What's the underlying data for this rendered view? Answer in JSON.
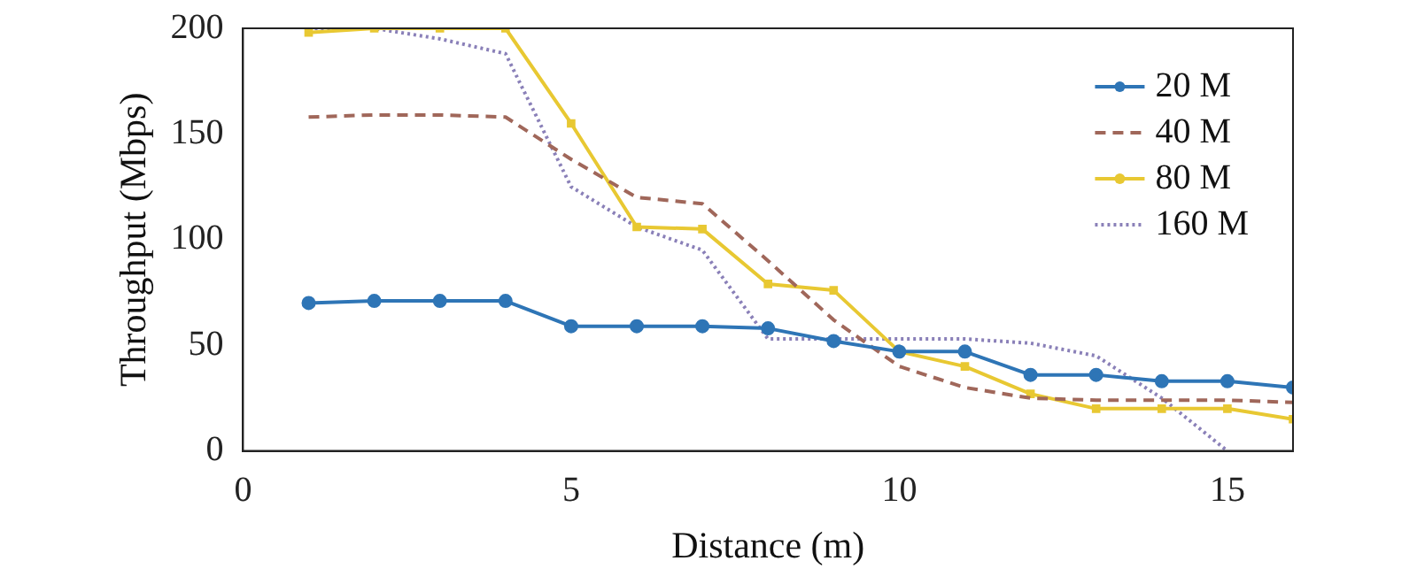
{
  "chart_data": {
    "type": "line",
    "xlabel": "Distance (m)",
    "ylabel": "Throughput (Mbps)",
    "x": [
      1,
      2,
      3,
      4,
      5,
      6,
      7,
      8,
      9,
      10,
      11,
      12,
      13,
      14,
      15,
      16
    ],
    "series": [
      {
        "name": "20 M",
        "color": "#2e75b6",
        "marker": "circle",
        "line_style": "solid",
        "values": [
          70,
          71,
          71,
          71,
          59,
          59,
          59,
          58,
          52,
          47,
          47,
          36,
          36,
          33,
          33,
          30
        ]
      },
      {
        "name": "40 M",
        "color": "#a0675a",
        "marker": "none",
        "line_style": "dashed",
        "values": [
          158,
          159,
          159,
          158,
          138,
          120,
          117,
          90,
          62,
          40,
          30,
          25,
          24,
          24,
          24,
          23
        ]
      },
      {
        "name": "80 M",
        "color": "#e8c832",
        "marker": "square",
        "line_style": "solid",
        "values": [
          198,
          200,
          200,
          200,
          155,
          106,
          105,
          79,
          76,
          47,
          40,
          27,
          20,
          20,
          20,
          15
        ]
      },
      {
        "name": "160 M",
        "color": "#8a80b8",
        "marker": "none",
        "line_style": "dotted",
        "values": [
          200,
          200,
          195,
          188,
          125,
          106,
          95,
          53,
          53,
          53,
          53,
          51,
          45,
          25,
          0,
          null
        ]
      }
    ],
    "xlim": [
      0,
      16
    ],
    "xticks": [
      0,
      5,
      10,
      15
    ],
    "ylim": [
      0,
      200
    ],
    "yticks": [
      0,
      50,
      100,
      150,
      200
    ],
    "grid": false,
    "legend": "top right"
  }
}
